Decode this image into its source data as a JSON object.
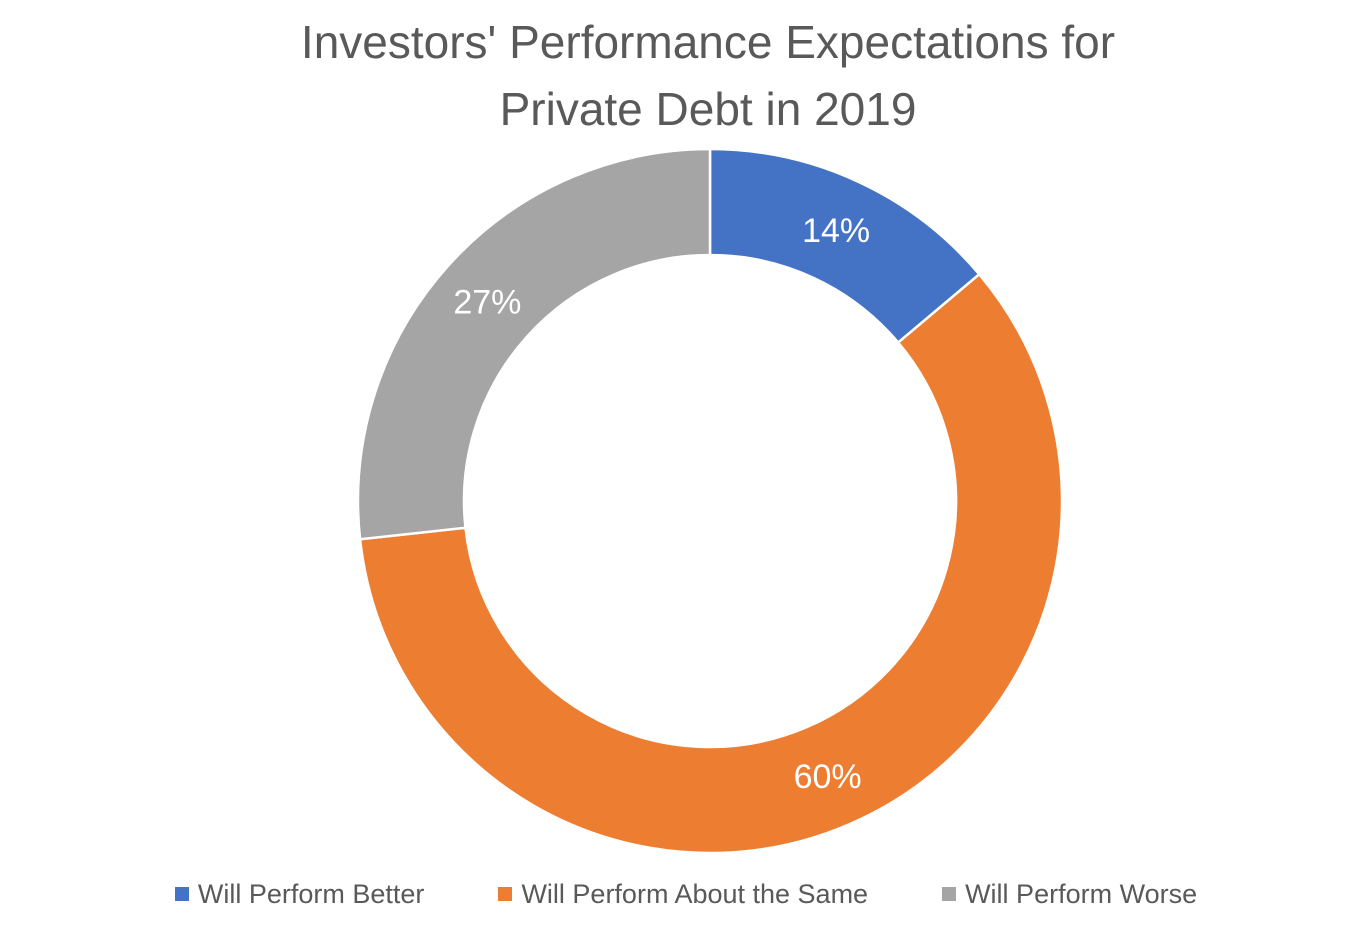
{
  "chart_data": {
    "type": "pie",
    "variant": "donut",
    "title": "Investors' Performance Expectations for Private Debt in 2019",
    "title_lines": [
      "Investors' Performance Expectations for",
      "Private Debt in 2019"
    ],
    "categories": [
      "Will Perform Better",
      "Will Perform About the Same",
      "Will Perform Worse"
    ],
    "values": [
      14,
      60,
      27
    ],
    "labels": [
      "14%",
      "60%",
      "27%"
    ],
    "colors": [
      "#4472C4",
      "#ED7D31",
      "#A5A5A5"
    ],
    "legend_position": "bottom"
  }
}
